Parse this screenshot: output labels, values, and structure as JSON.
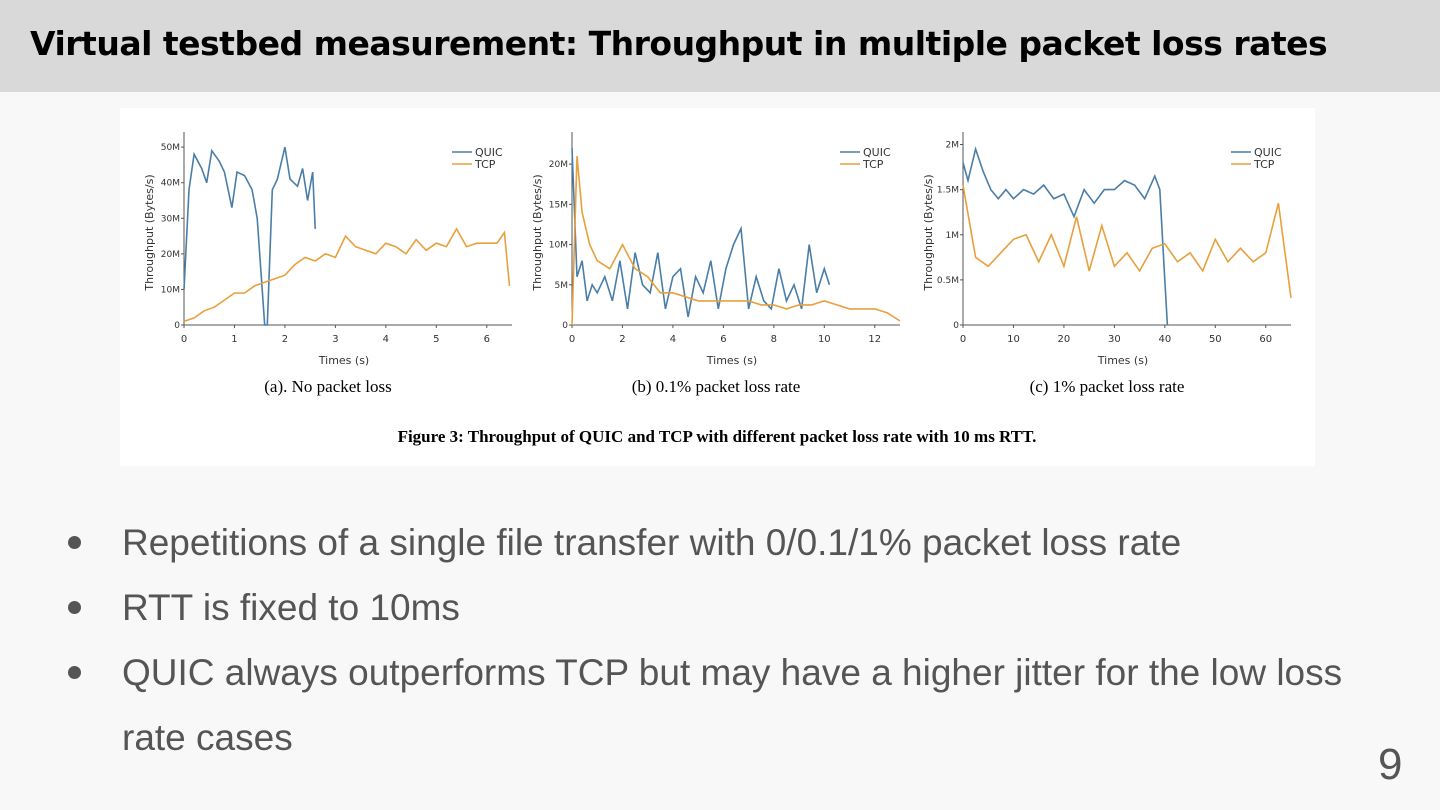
{
  "header": {
    "title": "Virtual testbed measurement: Throughput in multiple packet loss rates"
  },
  "chart_data": [
    {
      "type": "line",
      "subtitle": "(a). No packet loss",
      "x_label": "Times (s)",
      "y_label": "Throughput (Bytes/s)",
      "xlim": [
        0,
        6.5
      ],
      "ylim": [
        0,
        52
      ],
      "xticks": [
        0,
        1,
        2,
        3,
        4,
        5,
        6
      ],
      "yticks": [
        0,
        {
          "value": 10,
          "label": "10M"
        },
        {
          "value": 20,
          "label": "20M"
        },
        {
          "value": 30,
          "label": "30M"
        },
        {
          "value": 40,
          "label": "40M"
        },
        {
          "value": 50,
          "label": "50M"
        }
      ],
      "series": [
        {
          "name": "QUIC",
          "color": "#4a7ea8",
          "x": [
            0,
            0.1,
            0.2,
            0.35,
            0.45,
            0.55,
            0.7,
            0.8,
            0.95,
            1.05,
            1.2,
            1.35,
            1.45,
            1.55,
            1.6,
            1.65,
            1.75,
            1.85,
            2.0,
            2.1,
            2.25,
            2.35,
            2.45,
            2.55,
            2.6
          ],
          "values": [
            10,
            38,
            48,
            44,
            40,
            49,
            46,
            43,
            33,
            43,
            42,
            38,
            30,
            10,
            0,
            0,
            38,
            41,
            50,
            41,
            39,
            44,
            35,
            43,
            27
          ]
        },
        {
          "name": "TCP",
          "color": "#e8a03c",
          "x": [
            0,
            0.2,
            0.4,
            0.6,
            0.8,
            1.0,
            1.2,
            1.4,
            1.6,
            1.8,
            2.0,
            2.2,
            2.4,
            2.6,
            2.8,
            3.0,
            3.2,
            3.4,
            3.6,
            3.8,
            4.0,
            4.2,
            4.4,
            4.6,
            4.8,
            5.0,
            5.2,
            5.4,
            5.6,
            5.8,
            6.0,
            6.2,
            6.35,
            6.45
          ],
          "values": [
            1,
            2,
            4,
            5,
            7,
            9,
            9,
            11,
            12,
            13,
            14,
            17,
            19,
            18,
            20,
            19,
            25,
            22,
            21,
            20,
            23,
            22,
            20,
            24,
            21,
            23,
            22,
            27,
            22,
            23,
            23,
            23,
            26,
            11
          ]
        }
      ]
    },
    {
      "type": "line",
      "subtitle": "(b) 0.1% packet loss rate",
      "x_label": "Times (s)",
      "y_label": "Throughput (Bytes/s)",
      "xlim": [
        0,
        13
      ],
      "ylim": [
        0,
        23
      ],
      "xticks": [
        0,
        2,
        4,
        6,
        8,
        10,
        12
      ],
      "yticks": [
        0,
        {
          "value": 5,
          "label": "5M"
        },
        {
          "value": 10,
          "label": "10M"
        },
        {
          "value": 15,
          "label": "15M"
        },
        {
          "value": 20,
          "label": "20M"
        }
      ],
      "series": [
        {
          "name": "QUIC",
          "color": "#4a7ea8",
          "x": [
            0,
            0.2,
            0.4,
            0.6,
            0.8,
            1,
            1.3,
            1.6,
            1.9,
            2.2,
            2.5,
            2.8,
            3.1,
            3.4,
            3.7,
            4,
            4.3,
            4.6,
            4.9,
            5.2,
            5.5,
            5.8,
            6.1,
            6.4,
            6.7,
            7,
            7.3,
            7.6,
            7.9,
            8.2,
            8.5,
            8.8,
            9.1,
            9.4,
            9.7,
            10,
            10.2
          ],
          "values": [
            22,
            6,
            8,
            3,
            5,
            4,
            6,
            3,
            8,
            2,
            9,
            5,
            4,
            9,
            2,
            6,
            7,
            1,
            6,
            4,
            8,
            2,
            7,
            10,
            12,
            2,
            6,
            3,
            2,
            7,
            3,
            5,
            2,
            10,
            4,
            7,
            5
          ]
        },
        {
          "name": "TCP",
          "color": "#e8a03c",
          "x": [
            0,
            0.2,
            0.4,
            0.7,
            1,
            1.5,
            2,
            2.5,
            3,
            3.5,
            4,
            4.5,
            5,
            5.5,
            6,
            6.5,
            7,
            7.5,
            8,
            8.5,
            9,
            9.5,
            10,
            10.5,
            11,
            11.5,
            12,
            12.5,
            13
          ],
          "values": [
            0,
            21,
            14,
            10,
            8,
            7,
            10,
            7,
            6,
            4,
            4,
            3.5,
            3,
            3,
            3,
            3,
            3,
            2.5,
            2.5,
            2,
            2.5,
            2.5,
            3,
            2.5,
            2,
            2,
            2,
            1.5,
            0.5
          ]
        }
      ]
    },
    {
      "type": "line",
      "subtitle": "(c) 1% packet loss rate",
      "x_label": "Times (s)",
      "y_label": "Throughput (Bytes/s)",
      "xlim": [
        0,
        65
      ],
      "ylim": [
        0,
        2.05
      ],
      "xticks": [
        0,
        10,
        20,
        30,
        40,
        50,
        60
      ],
      "yticks": [
        0,
        {
          "value": 0.5,
          "label": "0.5M"
        },
        {
          "value": 1,
          "label": "1M"
        },
        {
          "value": 1.5,
          "label": "1.5M"
        },
        {
          "value": 2,
          "label": "2M"
        }
      ],
      "series": [
        {
          "name": "QUIC",
          "color": "#4a7ea8",
          "x": [
            0,
            1,
            2.5,
            4,
            5.5,
            7,
            8.5,
            10,
            12,
            14,
            16,
            18,
            20,
            22,
            24,
            26,
            28,
            30,
            32,
            34,
            36,
            38,
            39,
            40,
            40.5
          ],
          "values": [
            1.8,
            1.6,
            1.95,
            1.7,
            1.5,
            1.4,
            1.5,
            1.4,
            1.5,
            1.45,
            1.55,
            1.4,
            1.45,
            1.2,
            1.5,
            1.35,
            1.5,
            1.5,
            1.6,
            1.55,
            1.4,
            1.65,
            1.5,
            0.5,
            0
          ]
        },
        {
          "name": "TCP",
          "color": "#e8a03c",
          "x": [
            0,
            2.5,
            5,
            7.5,
            10,
            12.5,
            15,
            17.5,
            20,
            22.5,
            25,
            27.5,
            30,
            32.5,
            35,
            37.5,
            40,
            42.5,
            45,
            47.5,
            50,
            52.5,
            55,
            57.5,
            60,
            62.5,
            65
          ],
          "values": [
            1.55,
            0.75,
            0.65,
            0.8,
            0.95,
            1.0,
            0.7,
            1.0,
            0.65,
            1.2,
            0.6,
            1.1,
            0.65,
            0.8,
            0.6,
            0.85,
            0.9,
            0.7,
            0.8,
            0.6,
            0.95,
            0.7,
            0.85,
            0.7,
            0.8,
            1.35,
            0.3
          ]
        }
      ]
    }
  ],
  "figure_caption": "Figure 3: Throughput of QUIC and TCP with different packet loss rate with 10 ms RTT.",
  "bullets": [
    "Repetitions of a single file transfer with 0/0.1/1% packet loss rate",
    "RTT is fixed to 10ms",
    "QUIC always outperforms TCP but may have a higher jitter for the low loss rate cases"
  ],
  "page_number": "9"
}
